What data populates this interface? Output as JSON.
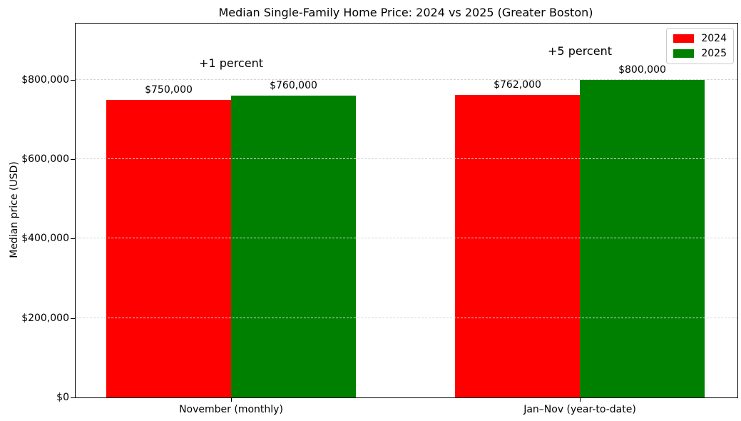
{
  "chart_data": {
    "type": "bar",
    "title": "Median Single-Family Home Price: 2024 vs 2025 (Greater Boston)",
    "ylabel": "Median price (USD)",
    "xlabel": "",
    "categories": [
      "November (monthly)",
      "Jan–Nov (year-to-date)"
    ],
    "series": [
      {
        "name": "2024",
        "color": "#ff0000",
        "values": [
          750000,
          762000
        ],
        "value_labels": [
          "$750,000",
          "$762,000"
        ]
      },
      {
        "name": "2025",
        "color": "#008000",
        "values": [
          760000,
          800000
        ],
        "value_labels": [
          "$760,000",
          "$800,000"
        ]
      }
    ],
    "annotations": [
      {
        "text": "+1 percent",
        "category_index": 0,
        "y_value": 841000
      },
      {
        "text": "+5 percent",
        "category_index": 1,
        "y_value": 872000
      }
    ],
    "ylim": [
      0,
      942000
    ],
    "yticks": [
      {
        "value": 0,
        "label": "$0"
      },
      {
        "value": 200000,
        "label": "$200,000"
      },
      {
        "value": 400000,
        "label": "$400,000"
      },
      {
        "value": 600000,
        "label": "$600,000"
      },
      {
        "value": 800000,
        "label": "$800,000"
      }
    ],
    "grid": {
      "axis": "y",
      "style": "dashed",
      "color": "#d5d5d5"
    },
    "legend": {
      "position": "upper right",
      "entries": [
        "2024",
        "2025"
      ]
    }
  }
}
